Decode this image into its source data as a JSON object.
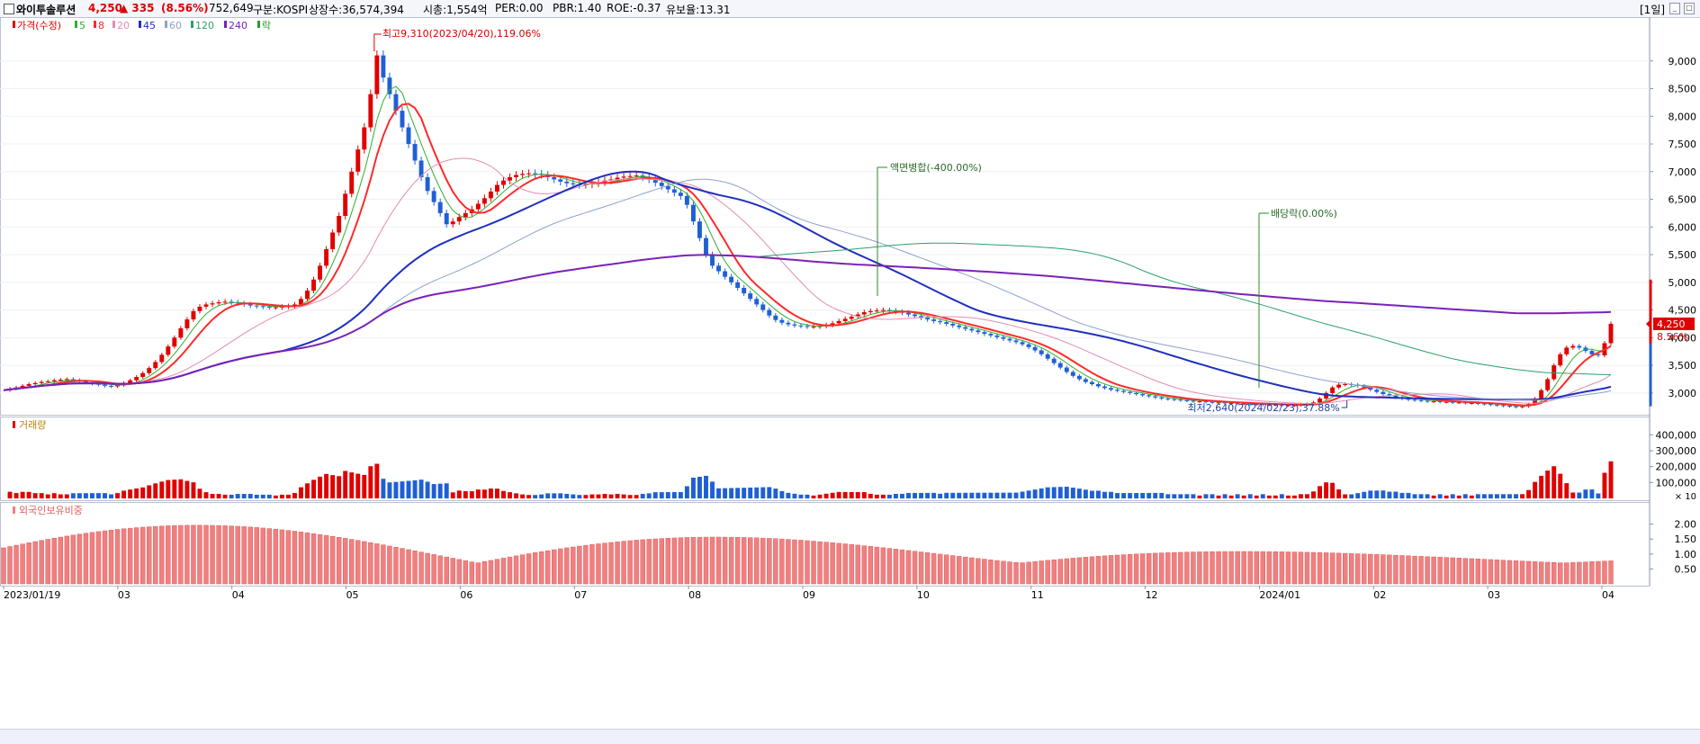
{
  "header": {
    "name": "와이투솔루션",
    "price": "4,250",
    "change": "▲ 335",
    "change_pct": "(8.56%)",
    "volume": "752,649",
    "market": "구분:KOSPI",
    "shares": "상장수:36,574,394",
    "mcap": "시총:1,554억",
    "per": "PER:0.00",
    "pbr": "PBR:1.40",
    "roe": "ROE:-0.37",
    "float": "유보율:13.31",
    "period": "[1일]"
  },
  "colors": {
    "up": "#e00000",
    "down": "#1f5fd6",
    "ma5": "#2fb02f",
    "ma8": "#ff2a2a",
    "ma20": "#e58bb3",
    "ma45": "#1f2fbf",
    "ma60": "#8f9fd0",
    "ma120": "#2aa06a",
    "ma240": "#7a22b8",
    "foreign": "#f08080"
  },
  "chart_data": [
    {
      "type": "candlestick",
      "title": "",
      "legend": [
        "가격(수정)",
        "5",
        "8",
        "20",
        "45",
        "60",
        "120",
        "240",
        "락"
      ],
      "ylim": [
        2640,
        9500
      ],
      "yticks": [
        3000,
        3500,
        4000,
        4500,
        5000,
        5500,
        6000,
        6500,
        7000,
        7500,
        8000,
        8500,
        9000
      ],
      "ytick_labels": [
        "3,000",
        "3,500",
        "4,000",
        "4,500",
        "5,000",
        "5,500",
        "6,000",
        "6,500",
        "7,000",
        "7,500",
        "8,000",
        "8,500",
        "9,000"
      ],
      "x_labels": [
        "2023/01/19",
        "03",
        "04",
        "05",
        "06",
        "07",
        "08",
        "09",
        "10",
        "11",
        "12",
        "2024/01",
        "02",
        "03",
        "04"
      ],
      "closes": [
        3050,
        3080,
        3100,
        3130,
        3160,
        3180,
        3200,
        3210,
        3230,
        3240,
        3250,
        3230,
        3210,
        3190,
        3170,
        3150,
        3130,
        3120,
        3140,
        3180,
        3230,
        3290,
        3360,
        3450,
        3560,
        3690,
        3840,
        4000,
        4170,
        4330,
        4480,
        4560,
        4600,
        4620,
        4640,
        4650,
        4640,
        4620,
        4600,
        4580,
        4570,
        4560,
        4550,
        4550,
        4560,
        4570,
        4600,
        4700,
        4850,
        5050,
        5300,
        5600,
        5900,
        6200,
        6600,
        7000,
        7400,
        7800,
        8400,
        9100,
        8700,
        8400,
        8100,
        7800,
        7500,
        7200,
        6900,
        6650,
        6450,
        6250,
        6050,
        6100,
        6180,
        6250,
        6320,
        6420,
        6520,
        6640,
        6760,
        6840,
        6900,
        6940,
        6960,
        6970,
        6960,
        6940,
        6900,
        6860,
        6820,
        6790,
        6770,
        6760,
        6770,
        6790,
        6810,
        6840,
        6860,
        6890,
        6910,
        6920,
        6930,
        6900,
        6860,
        6800,
        6740,
        6680,
        6620,
        6560,
        6400,
        6100,
        5800,
        5500,
        5300,
        5200,
        5100,
        5000,
        4900,
        4800,
        4700,
        4600,
        4500,
        4400,
        4320,
        4270,
        4240,
        4220,
        4210,
        4200,
        4200,
        4210,
        4230,
        4260,
        4300,
        4340,
        4380,
        4420,
        4460,
        4480,
        4490,
        4500,
        4490,
        4470,
        4450,
        4420,
        4390,
        4360,
        4330,
        4300,
        4280,
        4250,
        4220,
        4190,
        4160,
        4130,
        4100,
        4070,
        4040,
        4010,
        3980,
        3950,
        3920,
        3880,
        3830,
        3770,
        3700,
        3620,
        3540,
        3460,
        3380,
        3310,
        3250,
        3200,
        3160,
        3120,
        3090,
        3060,
        3040,
        3020,
        3000,
        2980,
        2960,
        2940,
        2920,
        2900,
        2890,
        2880,
        2870,
        2860,
        2850,
        2850,
        2840,
        2830,
        2830,
        2820,
        2820,
        2810,
        2810,
        2800,
        2800,
        2790,
        2790,
        2790,
        2780,
        2780,
        2780,
        2790,
        2800,
        2830,
        2900,
        3000,
        3100,
        3150,
        3160,
        3150,
        3130,
        3100,
        3060,
        3020,
        2980,
        2950,
        2920,
        2900,
        2880,
        2870,
        2860,
        2850,
        2850,
        2840,
        2840,
        2830,
        2830,
        2820,
        2820,
        2810,
        2800,
        2790,
        2780,
        2770,
        2760,
        2750,
        2760,
        2800,
        2900,
        3050,
        3250,
        3500,
        3700,
        3820,
        3850,
        3820,
        3760,
        3700,
        3680,
        3900,
        4250
      ],
      "volume": {
        "label": "거래량",
        "yticks": [
          100000,
          200000,
          300000,
          400000
        ],
        "ytick_labels": [
          "100,000",
          "200,000",
          "300,000",
          "400,000"
        ],
        "unit": "× 10"
      },
      "foreign": {
        "label": "외국인보유비중",
        "yticks": [
          0.5,
          1.0,
          1.5,
          2.0
        ],
        "ytick_labels": [
          "0.50",
          "1.00",
          "1.50",
          "2.00"
        ]
      },
      "annotations": {
        "high": "최고9,310(2023/04/20),119.06%",
        "low": "최저2,640(2024/02/23),37.88%",
        "split": "액면병합(-400.00%)",
        "dividend": "배당락(0.00%)",
        "last_price": "4,250",
        "last_pct": "8.56%"
      }
    }
  ]
}
